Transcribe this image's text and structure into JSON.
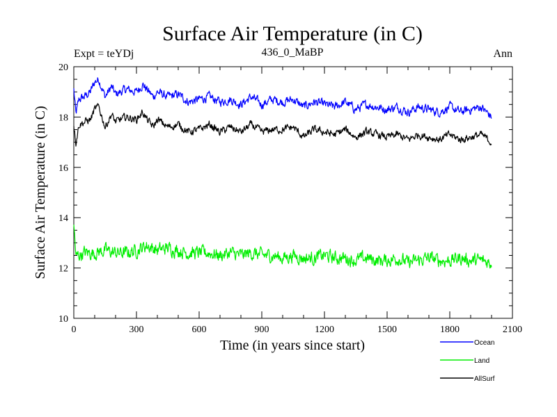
{
  "chart_data": {
    "type": "line",
    "title": "Surface Air Temperature (in C)",
    "subtitle": "436_0_MaBP",
    "left_label": "Expt = teYDj",
    "right_label": "Ann",
    "xlabel": "Time (in years since start)",
    "ylabel": "Surface Air Temperature (in C)",
    "xlim": [
      0,
      2100
    ],
    "ylim": [
      10,
      20
    ],
    "x_ticks": [
      0,
      300,
      600,
      900,
      1200,
      1500,
      1800,
      2100
    ],
    "y_ticks": [
      10,
      12,
      14,
      16,
      18,
      20
    ],
    "legend_position": "bottom-right",
    "series": [
      {
        "name": "Ocean",
        "color": "#0000ff",
        "x": [
          0,
          10,
          25,
          50,
          80,
          100,
          120,
          150,
          180,
          200,
          250,
          300,
          330,
          350,
          380,
          400,
          450,
          500,
          550,
          600,
          650,
          700,
          750,
          800,
          850,
          900,
          950,
          1000,
          1050,
          1100,
          1150,
          1200,
          1250,
          1300,
          1350,
          1400,
          1450,
          1500,
          1550,
          1600,
          1650,
          1700,
          1750,
          1800,
          1850,
          1900,
          1950,
          2000
        ],
        "values": [
          19.1,
          18.1,
          18.7,
          18.8,
          19.0,
          19.4,
          19.5,
          18.8,
          19.2,
          18.9,
          19.1,
          19.0,
          19.3,
          19.1,
          18.8,
          19.0,
          18.8,
          18.9,
          18.6,
          18.7,
          18.8,
          18.6,
          18.7,
          18.5,
          18.8,
          18.5,
          18.7,
          18.6,
          18.7,
          18.4,
          18.6,
          18.5,
          18.4,
          18.6,
          18.3,
          18.5,
          18.4,
          18.3,
          18.4,
          18.2,
          18.4,
          18.3,
          18.2,
          18.4,
          18.2,
          18.3,
          18.4,
          18.0
        ]
      },
      {
        "name": "Land",
        "color": "#00ee00",
        "x": [
          0,
          5,
          10,
          20,
          50,
          100,
          150,
          200,
          250,
          300,
          350,
          400,
          450,
          500,
          550,
          600,
          650,
          700,
          750,
          800,
          850,
          900,
          950,
          1000,
          1050,
          1100,
          1150,
          1200,
          1250,
          1300,
          1350,
          1400,
          1450,
          1500,
          1550,
          1600,
          1650,
          1700,
          1750,
          1800,
          1850,
          1900,
          1950,
          2000
        ],
        "values": [
          13.6,
          13.2,
          12.4,
          12.5,
          12.6,
          12.6,
          12.7,
          12.6,
          12.6,
          12.7,
          12.9,
          12.7,
          12.8,
          12.7,
          12.6,
          12.6,
          12.6,
          12.5,
          12.6,
          12.5,
          12.6,
          12.5,
          12.5,
          12.4,
          12.5,
          12.4,
          12.4,
          12.5,
          12.4,
          12.4,
          12.3,
          12.4,
          12.3,
          12.3,
          12.4,
          12.2,
          12.3,
          12.4,
          12.3,
          12.3,
          12.4,
          12.3,
          12.3,
          12.2
        ]
      },
      {
        "name": "AllSurf",
        "color": "#000000",
        "x": [
          0,
          10,
          25,
          50,
          80,
          100,
          120,
          150,
          180,
          200,
          250,
          300,
          330,
          350,
          380,
          400,
          450,
          500,
          550,
          600,
          650,
          700,
          750,
          800,
          850,
          900,
          950,
          1000,
          1050,
          1100,
          1150,
          1200,
          1250,
          1300,
          1350,
          1400,
          1450,
          1500,
          1550,
          1600,
          1650,
          1700,
          1750,
          1800,
          1850,
          1900,
          1950,
          2000
        ],
        "values": [
          17.7,
          17.0,
          17.7,
          17.8,
          17.9,
          18.3,
          18.4,
          17.6,
          18.1,
          17.8,
          18.0,
          17.9,
          18.2,
          17.9,
          17.6,
          17.9,
          17.6,
          17.7,
          17.4,
          17.5,
          17.7,
          17.4,
          17.6,
          17.4,
          17.7,
          17.4,
          17.5,
          17.5,
          17.6,
          17.2,
          17.5,
          17.4,
          17.3,
          17.5,
          17.2,
          17.4,
          17.3,
          17.2,
          17.3,
          17.1,
          17.3,
          17.2,
          17.1,
          17.3,
          17.1,
          17.2,
          17.3,
          17.0
        ]
      }
    ]
  }
}
